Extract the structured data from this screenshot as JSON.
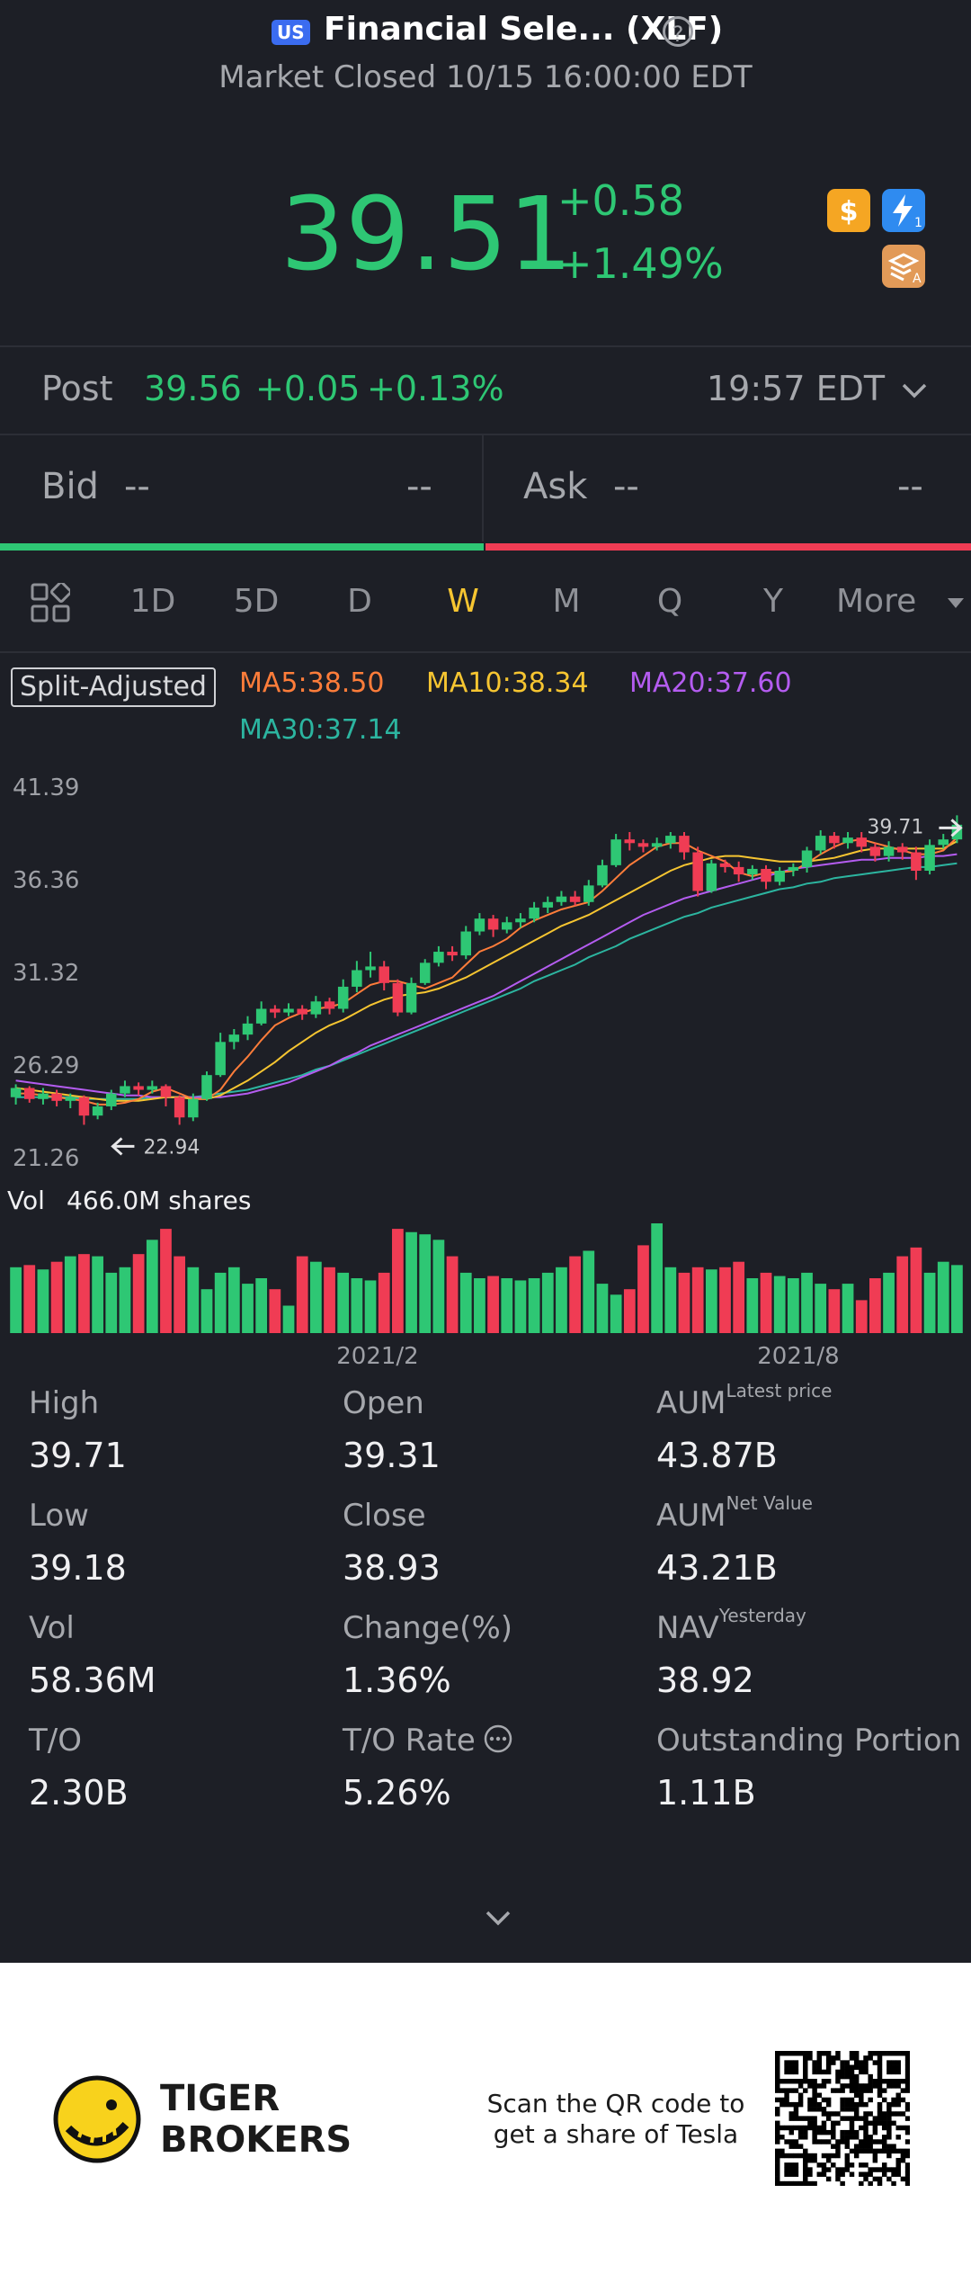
{
  "header": {
    "market_badge": "US",
    "title": "Financial Sele... (XLF)",
    "status": "Market Closed 10/15 16:00:00 EDT",
    "price": "39.51",
    "change": "+0.58",
    "change_pct": "+1.49%",
    "icons": [
      "dollar-icon",
      "lightning-icon",
      "stack-icon"
    ],
    "help_glyph": "?"
  },
  "post": {
    "label": "Post",
    "price": "39.56",
    "change": "+0.05",
    "change_pct": "+0.13%",
    "time": "19:57 EDT"
  },
  "bid": {
    "label": "Bid",
    "price": "--",
    "size": "--"
  },
  "ask": {
    "label": "Ask",
    "price": "--",
    "size": "--"
  },
  "tabs": [
    "1D",
    "5D",
    "D",
    "W",
    "M",
    "Q",
    "Y"
  ],
  "active_tab": "W",
  "more_label": "More",
  "chart": {
    "split_label": "Split-Adjusted",
    "ma5": "MA5:38.50",
    "ma10": "MA10:38.34",
    "ma20": "MA20:37.60",
    "ma30": "MA30:37.14",
    "high_marker": "39.71",
    "low_marker": "22.94",
    "vol_label": "Vol",
    "vol_value": "466.0M shares",
    "date_labels": [
      "2021/2",
      "2021/8"
    ]
  },
  "chart_data": {
    "type": "candlestick",
    "y_ticks": [
      "41.39",
      "36.36",
      "31.32",
      "26.29",
      "21.26"
    ],
    "ylim": [
      21.26,
      41.39
    ],
    "x_ticks": [
      "2021/2",
      "2021/8"
    ],
    "colors": {
      "up": "#2ec774",
      "down": "#f03c54",
      "ma5": "#ff7d3a",
      "ma10": "#f6c531",
      "ma20": "#b45cf0",
      "ma30": "#2cb5a0"
    },
    "candles": [
      [
        24.4,
        24.9,
        24.0,
        25.1
      ],
      [
        24.9,
        24.3,
        24.1,
        25.0
      ],
      [
        24.3,
        24.6,
        24.0,
        24.9
      ],
      [
        24.6,
        24.2,
        23.9,
        24.8
      ],
      [
        24.2,
        24.4,
        23.8,
        24.6
      ],
      [
        24.4,
        23.4,
        22.9,
        24.5
      ],
      [
        23.4,
        23.9,
        23.2,
        24.1
      ],
      [
        23.9,
        24.6,
        23.7,
        24.8
      ],
      [
        24.6,
        25.0,
        24.4,
        25.3
      ],
      [
        25.0,
        24.8,
        24.5,
        25.2
      ],
      [
        24.8,
        25.0,
        24.6,
        25.3
      ],
      [
        25.0,
        24.4,
        23.9,
        25.1
      ],
      [
        24.4,
        23.3,
        22.9,
        24.5
      ],
      [
        23.3,
        24.3,
        23.1,
        24.6
      ],
      [
        24.3,
        25.6,
        24.2,
        25.8
      ],
      [
        25.6,
        27.4,
        25.5,
        27.9
      ],
      [
        27.4,
        27.8,
        27.0,
        28.1
      ],
      [
        27.8,
        28.4,
        27.5,
        28.8
      ],
      [
        28.4,
        29.2,
        28.3,
        29.6
      ],
      [
        29.2,
        29.0,
        28.7,
        29.4
      ],
      [
        29.0,
        29.2,
        28.8,
        29.5
      ],
      [
        29.2,
        28.9,
        28.6,
        29.4
      ],
      [
        28.9,
        29.6,
        28.7,
        29.9
      ],
      [
        29.6,
        29.2,
        28.9,
        29.8
      ],
      [
        29.2,
        30.4,
        29.0,
        30.8
      ],
      [
        30.4,
        31.3,
        30.1,
        31.8
      ],
      [
        31.3,
        31.5,
        30.9,
        32.3
      ],
      [
        31.5,
        30.6,
        30.2,
        31.8
      ],
      [
        30.6,
        29.0,
        28.8,
        30.8
      ],
      [
        29.0,
        30.6,
        28.9,
        30.9
      ],
      [
        30.6,
        31.7,
        30.5,
        31.9
      ],
      [
        31.7,
        32.3,
        31.5,
        32.6
      ],
      [
        32.3,
        32.1,
        31.8,
        32.6
      ],
      [
        32.1,
        33.4,
        31.9,
        33.7
      ],
      [
        33.4,
        34.1,
        33.2,
        34.4
      ],
      [
        34.1,
        33.5,
        33.1,
        34.3
      ],
      [
        33.5,
        33.9,
        33.3,
        34.2
      ],
      [
        33.9,
        34.1,
        33.6,
        34.4
      ],
      [
        34.1,
        34.7,
        33.9,
        35.0
      ],
      [
        34.7,
        35.0,
        34.4,
        35.3
      ],
      [
        35.0,
        35.3,
        34.8,
        35.6
      ],
      [
        35.3,
        35.0,
        34.8,
        35.6
      ],
      [
        35.0,
        35.9,
        34.8,
        36.2
      ],
      [
        35.9,
        37.0,
        35.8,
        37.3
      ],
      [
        37.0,
        38.4,
        36.9,
        38.7
      ],
      [
        38.4,
        38.2,
        37.8,
        38.8
      ],
      [
        38.2,
        38.0,
        37.7,
        38.4
      ],
      [
        38.0,
        38.2,
        37.8,
        38.5
      ],
      [
        38.2,
        38.6,
        37.9,
        38.8
      ],
      [
        38.6,
        37.7,
        37.3,
        38.8
      ],
      [
        37.7,
        35.6,
        35.3,
        38.0
      ],
      [
        35.6,
        37.1,
        35.5,
        37.3
      ],
      [
        37.1,
        36.9,
        36.6,
        37.3
      ],
      [
        36.9,
        36.5,
        36.1,
        37.2
      ],
      [
        36.5,
        36.8,
        36.2,
        37.0
      ],
      [
        36.8,
        36.1,
        35.7,
        37.0
      ],
      [
        36.1,
        36.7,
        35.9,
        36.9
      ],
      [
        36.7,
        36.9,
        36.4,
        37.1
      ],
      [
        36.9,
        37.8,
        36.6,
        38.0
      ],
      [
        37.8,
        38.6,
        37.6,
        38.9
      ],
      [
        38.6,
        38.2,
        37.9,
        38.8
      ],
      [
        38.2,
        38.5,
        37.9,
        38.8
      ],
      [
        38.5,
        38.0,
        37.7,
        38.8
      ],
      [
        38.0,
        37.5,
        37.2,
        38.2
      ],
      [
        37.5,
        38.0,
        37.2,
        38.3
      ],
      [
        38.0,
        37.7,
        37.3,
        38.2
      ],
      [
        37.7,
        36.7,
        36.2,
        38.0
      ],
      [
        36.7,
        38.1,
        36.5,
        38.4
      ],
      [
        38.1,
        38.4,
        37.9,
        38.7
      ],
      [
        38.4,
        39.2,
        38.2,
        39.71
      ]
    ],
    "ma_lines": {
      "ma5": [
        24.6,
        24.6,
        24.5,
        24.4,
        24.3,
        24.2,
        24.0,
        24.0,
        24.1,
        24.3,
        24.7,
        24.9,
        24.6,
        24.3,
        24.3,
        24.8,
        25.8,
        26.6,
        27.5,
        28.3,
        28.7,
        29.0,
        29.2,
        29.3,
        29.5,
        30.0,
        30.5,
        30.7,
        30.7,
        30.5,
        30.3,
        30.6,
        30.9,
        31.6,
        32.3,
        32.6,
        33.0,
        33.6,
        34.0,
        34.3,
        34.6,
        34.8,
        35.0,
        35.6,
        36.3,
        37.0,
        37.5,
        38.0,
        38.2,
        38.2,
        37.8,
        37.5,
        37.2,
        36.6,
        36.4,
        36.6,
        36.6,
        36.7,
        37.1,
        37.6,
        38.0,
        38.3,
        38.4,
        38.2,
        38.0,
        37.8,
        37.6,
        37.6,
        37.8,
        38.5
      ],
      "ma10": [
        24.9,
        24.8,
        24.7,
        24.6,
        24.5,
        24.4,
        24.3,
        24.2,
        24.2,
        24.2,
        24.3,
        24.4,
        24.4,
        24.3,
        24.3,
        24.5,
        24.9,
        25.3,
        25.8,
        26.3,
        26.9,
        27.4,
        27.9,
        28.3,
        28.6,
        29.0,
        29.4,
        29.7,
        29.9,
        30.0,
        30.1,
        30.3,
        30.6,
        30.9,
        31.3,
        31.7,
        32.1,
        32.5,
        32.9,
        33.3,
        33.7,
        34.0,
        34.3,
        34.7,
        35.1,
        35.5,
        35.9,
        36.3,
        36.7,
        37.0,
        37.2,
        37.4,
        37.5,
        37.5,
        37.4,
        37.3,
        37.2,
        37.2,
        37.2,
        37.3,
        37.4,
        37.6,
        37.8,
        37.9,
        37.9,
        37.9,
        37.9,
        37.9,
        37.9,
        38.3
      ],
      "ma20": [
        25.3,
        25.2,
        25.1,
        25.0,
        24.9,
        24.8,
        24.7,
        24.6,
        24.5,
        24.5,
        24.4,
        24.4,
        24.4,
        24.4,
        24.4,
        24.4,
        24.5,
        24.6,
        24.8,
        25.0,
        25.2,
        25.5,
        25.8,
        26.1,
        26.5,
        26.8,
        27.2,
        27.5,
        27.8,
        28.1,
        28.4,
        28.7,
        29.0,
        29.3,
        29.6,
        29.9,
        30.3,
        30.7,
        31.1,
        31.5,
        31.9,
        32.3,
        32.7,
        33.1,
        33.5,
        33.9,
        34.3,
        34.6,
        34.9,
        35.2,
        35.4,
        35.6,
        35.8,
        36.0,
        36.2,
        36.4,
        36.6,
        36.8,
        36.9,
        37.0,
        37.1,
        37.2,
        37.3,
        37.3,
        37.4,
        37.4,
        37.4,
        37.5,
        37.5,
        37.6
      ],
      "ma30": [
        24.4,
        24.4,
        24.4,
        24.4,
        24.4,
        24.3,
        24.3,
        24.3,
        24.3,
        24.3,
        24.4,
        24.4,
        24.4,
        24.4,
        24.5,
        24.6,
        24.7,
        24.8,
        25.0,
        25.2,
        25.4,
        25.6,
        25.9,
        26.1,
        26.4,
        26.7,
        27.0,
        27.3,
        27.6,
        27.9,
        28.2,
        28.5,
        28.8,
        29.1,
        29.4,
        29.7,
        30.0,
        30.3,
        30.7,
        31.0,
        31.3,
        31.6,
        32.0,
        32.3,
        32.6,
        33.0,
        33.3,
        33.6,
        33.9,
        34.2,
        34.4,
        34.7,
        34.9,
        35.1,
        35.3,
        35.5,
        35.7,
        35.8,
        36.0,
        36.1,
        36.3,
        36.4,
        36.5,
        36.6,
        36.7,
        36.8,
        36.9,
        36.9,
        37.0,
        37.1
      ]
    },
    "volume": [
      0.6,
      0.62,
      0.58,
      0.65,
      0.7,
      0.72,
      0.7,
      0.55,
      0.6,
      0.72,
      0.85,
      0.95,
      0.7,
      0.6,
      0.4,
      0.55,
      0.6,
      0.45,
      0.5,
      0.4,
      0.25,
      0.7,
      0.65,
      0.6,
      0.55,
      0.5,
      0.48,
      0.55,
      0.95,
      0.92,
      0.9,
      0.85,
      0.7,
      0.55,
      0.5,
      0.52,
      0.5,
      0.48,
      0.5,
      0.55,
      0.6,
      0.7,
      0.75,
      0.45,
      0.35,
      0.4,
      0.8,
      1.0,
      0.6,
      0.55,
      0.6,
      0.58,
      0.6,
      0.65,
      0.5,
      0.55,
      0.52,
      0.5,
      0.55,
      0.45,
      0.4,
      0.45,
      0.3,
      0.5,
      0.55,
      0.7,
      0.78,
      0.55,
      0.65,
      0.62
    ]
  },
  "stats": [
    {
      "label": "High",
      "sup": "",
      "value": "39.71"
    },
    {
      "label": "Open",
      "sup": "",
      "value": "39.31"
    },
    {
      "label": "AUM",
      "sup": "Latest price",
      "value": "43.87B"
    },
    {
      "label": "Low",
      "sup": "",
      "value": "39.18"
    },
    {
      "label": "Close",
      "sup": "",
      "value": "38.93"
    },
    {
      "label": "AUM",
      "sup": "Net Value",
      "value": "43.21B"
    },
    {
      "label": "Vol",
      "sup": "",
      "value": "58.36M"
    },
    {
      "label": "Change(%)",
      "sup": "",
      "value": "1.36%"
    },
    {
      "label": "NAV",
      "sup": "Yesterday",
      "value": "38.92"
    },
    {
      "label": "T/O",
      "sup": "",
      "value": "2.30B"
    },
    {
      "label": "T/O Rate",
      "sup": "",
      "value": "5.26%"
    },
    {
      "label": "Outstanding Portion",
      "sup": "",
      "value": "1.11B"
    }
  ],
  "footer": {
    "brand_line1": "TIGER",
    "brand_line2": "BROKERS",
    "scan_line1": "Scan the QR code to",
    "scan_line2": "get a share of Tesla"
  }
}
